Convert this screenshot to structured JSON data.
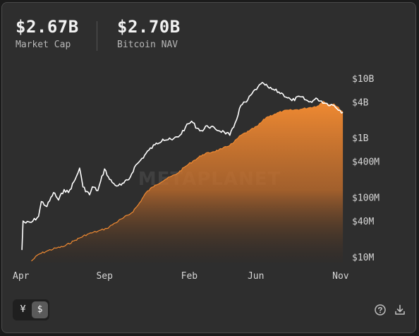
{
  "stats": {
    "market_cap": {
      "value": "$2.67B",
      "label": "Market Cap"
    },
    "bitcoin_nav": {
      "value": "$2.70B",
      "label": "Bitcoin NAV"
    }
  },
  "watermark": "METAPLANET",
  "currency_toggle": {
    "yen_label": "¥",
    "usd_label": "$",
    "selected": "usd"
  },
  "icons": {
    "help": "help-circle-icon",
    "download": "download-icon"
  },
  "colors": {
    "market_cap_line": "#ffffff",
    "nav_area": "#f08a32",
    "background": "#2e2e2e"
  },
  "chart_data": {
    "type": "line+area",
    "y_scale": "log",
    "ylim": [
      8000000,
      15000000000
    ],
    "y_ticks": [
      {
        "value": 10000000000,
        "label": "$10B"
      },
      {
        "value": 4000000000,
        "label": "$4B"
      },
      {
        "value": 1000000000,
        "label": "$1B"
      },
      {
        "value": 400000000,
        "label": "$400M"
      },
      {
        "value": 100000000,
        "label": "$100M"
      },
      {
        "value": 40000000,
        "label": "$40M"
      },
      {
        "value": 10000000,
        "label": "$10M"
      }
    ],
    "x_ticks": [
      {
        "value": "2024-04-01",
        "label": "Apr"
      },
      {
        "value": "2024-09-01",
        "label": "Sep"
      },
      {
        "value": "2025-02-01",
        "label": "Feb"
      },
      {
        "value": "2025-06-01",
        "label": "Jun"
      },
      {
        "value": "2025-11-01",
        "label": "Nov"
      }
    ],
    "xlim": [
      "2024-04-01",
      "2025-11-10"
    ],
    "series": [
      {
        "name": "Market Cap",
        "style": "line",
        "points": [
          [
            "2024-04-05",
            13000000
          ],
          [
            "2024-04-07",
            40000000
          ],
          [
            "2024-04-12",
            37000000
          ],
          [
            "2024-04-22",
            38000000
          ],
          [
            "2024-05-05",
            48000000
          ],
          [
            "2024-05-10",
            85000000
          ],
          [
            "2024-05-20",
            70000000
          ],
          [
            "2024-06-01",
            120000000
          ],
          [
            "2024-06-10",
            90000000
          ],
          [
            "2024-06-20",
            135000000
          ],
          [
            "2024-06-28",
            120000000
          ],
          [
            "2024-07-10",
            200000000
          ],
          [
            "2024-07-18",
            310000000
          ],
          [
            "2024-07-24",
            150000000
          ],
          [
            "2024-08-05",
            110000000
          ],
          [
            "2024-08-10",
            150000000
          ],
          [
            "2024-08-20",
            130000000
          ],
          [
            "2024-09-01",
            300000000
          ],
          [
            "2024-09-10",
            200000000
          ],
          [
            "2024-09-20",
            160000000
          ],
          [
            "2024-10-01",
            160000000
          ],
          [
            "2024-10-15",
            200000000
          ],
          [
            "2024-10-25",
            320000000
          ],
          [
            "2024-11-05",
            420000000
          ],
          [
            "2024-11-20",
            620000000
          ],
          [
            "2024-12-01",
            760000000
          ],
          [
            "2024-12-15",
            950000000
          ],
          [
            "2025-01-01",
            920000000
          ],
          [
            "2025-01-15",
            1100000000
          ],
          [
            "2025-01-25",
            1500000000
          ],
          [
            "2025-02-05",
            1900000000
          ],
          [
            "2025-02-15",
            1450000000
          ],
          [
            "2025-02-25",
            1300000000
          ],
          [
            "2025-03-05",
            1600000000
          ],
          [
            "2025-03-20",
            1400000000
          ],
          [
            "2025-04-05",
            1250000000
          ],
          [
            "2025-04-15",
            1100000000
          ],
          [
            "2025-04-22",
            1500000000
          ],
          [
            "2025-05-05",
            3500000000
          ],
          [
            "2025-05-15",
            4000000000
          ],
          [
            "2025-05-25",
            5500000000
          ],
          [
            "2025-06-05",
            7200000000
          ],
          [
            "2025-06-15",
            8200000000
          ],
          [
            "2025-06-25",
            6800000000
          ],
          [
            "2025-07-05",
            6300000000
          ],
          [
            "2025-07-20",
            5400000000
          ],
          [
            "2025-08-05",
            4200000000
          ],
          [
            "2025-08-20",
            4900000000
          ],
          [
            "2025-09-05",
            4000000000
          ],
          [
            "2025-09-20",
            4500000000
          ],
          [
            "2025-10-05",
            3800000000
          ],
          [
            "2025-10-20",
            3500000000
          ],
          [
            "2025-11-05",
            2670000000
          ]
        ]
      },
      {
        "name": "Bitcoin NAV",
        "style": "area",
        "points": [
          [
            "2024-04-22",
            8500000
          ],
          [
            "2024-05-05",
            11000000
          ],
          [
            "2024-05-20",
            12500000
          ],
          [
            "2024-06-05",
            14000000
          ],
          [
            "2024-06-20",
            15000000
          ],
          [
            "2024-07-10",
            19000000
          ],
          [
            "2024-08-01",
            24000000
          ],
          [
            "2024-08-20",
            27000000
          ],
          [
            "2024-09-05",
            30000000
          ],
          [
            "2024-09-20",
            37000000
          ],
          [
            "2024-10-05",
            45000000
          ],
          [
            "2024-10-20",
            55000000
          ],
          [
            "2024-11-01",
            75000000
          ],
          [
            "2024-11-15",
            120000000
          ],
          [
            "2024-12-01",
            160000000
          ],
          [
            "2024-12-20",
            200000000
          ],
          [
            "2025-01-10",
            250000000
          ],
          [
            "2025-01-25",
            330000000
          ],
          [
            "2025-02-10",
            420000000
          ],
          [
            "2025-02-25",
            520000000
          ],
          [
            "2025-03-15",
            580000000
          ],
          [
            "2025-04-01",
            650000000
          ],
          [
            "2025-04-20",
            800000000
          ],
          [
            "2025-05-05",
            1100000000
          ],
          [
            "2025-05-20",
            1300000000
          ],
          [
            "2025-06-05",
            1600000000
          ],
          [
            "2025-06-20",
            2200000000
          ],
          [
            "2025-07-05",
            2500000000
          ],
          [
            "2025-07-20",
            2800000000
          ],
          [
            "2025-08-05",
            2900000000
          ],
          [
            "2025-08-20",
            3000000000
          ],
          [
            "2025-09-05",
            3200000000
          ],
          [
            "2025-09-20",
            3400000000
          ],
          [
            "2025-10-01",
            4100000000
          ],
          [
            "2025-10-10",
            3600000000
          ],
          [
            "2025-10-20",
            3700000000
          ],
          [
            "2025-11-05",
            2700000000
          ]
        ]
      }
    ]
  }
}
